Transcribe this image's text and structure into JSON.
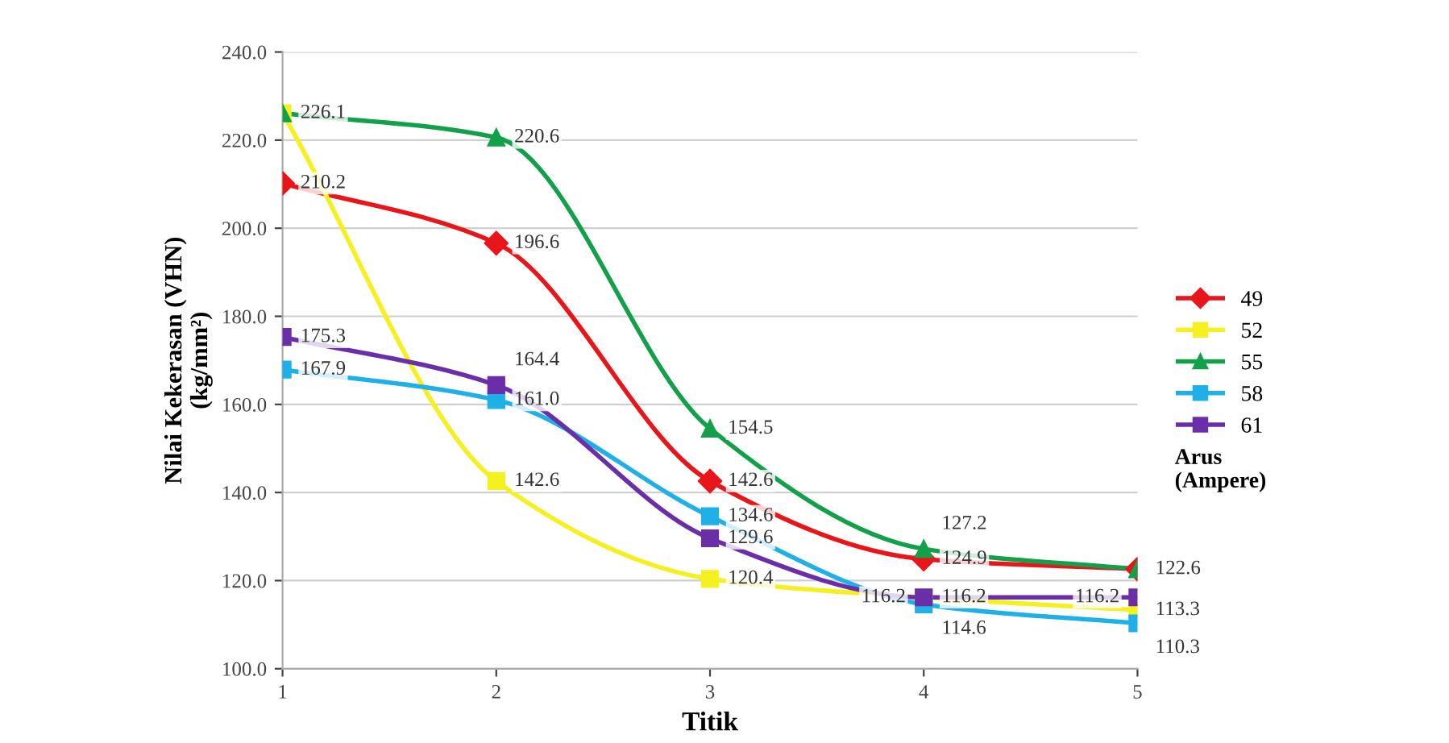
{
  "chart_data": {
    "type": "line",
    "xlabel": "Titik",
    "ylabel": "Nilai Kekerasan (VHN)\n(kg/mm²)",
    "legend_title": "Arus\n(Ampere)",
    "x": [
      1,
      2,
      3,
      4,
      5
    ],
    "xlim": [
      1,
      5
    ],
    "xticks": [
      1,
      2,
      3,
      4,
      5
    ],
    "ylim": [
      100,
      240
    ],
    "yticks": [
      {
        "value": 100,
        "label": "100.0"
      },
      {
        "value": 120,
        "label": "120.0"
      },
      {
        "value": 140,
        "label": "140.0"
      },
      {
        "value": 160,
        "label": "160.0"
      },
      {
        "value": 180,
        "label": "180.0"
      },
      {
        "value": 200,
        "label": "200.0"
      },
      {
        "value": 220,
        "label": "220.0"
      },
      {
        "value": 240,
        "label": "240.0"
      }
    ],
    "grid": "y",
    "legend": "right",
    "series": [
      {
        "name": "49",
        "color": "#e8161b",
        "marker": "diamond",
        "values": [
          210.2,
          196.6,
          142.6,
          124.9,
          122.6
        ],
        "value_labels": [
          "210.2",
          "196.6",
          "142.6",
          "124.9",
          null
        ]
      },
      {
        "name": "52",
        "color": "#f5f020",
        "marker": "square",
        "values": [
          226.1,
          142.6,
          120.4,
          116.2,
          113.3
        ],
        "value_labels": [
          null,
          "142.6",
          "120.4",
          "116.2",
          "113.3"
        ]
      },
      {
        "name": "55",
        "color": "#12a14a",
        "marker": "triangle",
        "values": [
          226.1,
          220.6,
          154.5,
          127.2,
          122.6
        ],
        "value_labels": [
          "226.1",
          "220.6",
          "154.5",
          "127.2",
          "122.6"
        ]
      },
      {
        "name": "58",
        "color": "#1fb0e8",
        "marker": "square",
        "values": [
          167.9,
          161.0,
          134.6,
          114.6,
          110.3
        ],
        "value_labels": [
          "167.9",
          "161.0",
          "134.6",
          "114.6",
          "110.3"
        ]
      },
      {
        "name": "61",
        "color": "#6a2fa8",
        "marker": "square",
        "values": [
          175.3,
          164.4,
          129.6,
          116.2,
          116.2
        ],
        "value_labels": [
          "175.3",
          "164.4",
          "129.6",
          "116.2",
          "116.2"
        ]
      }
    ]
  }
}
